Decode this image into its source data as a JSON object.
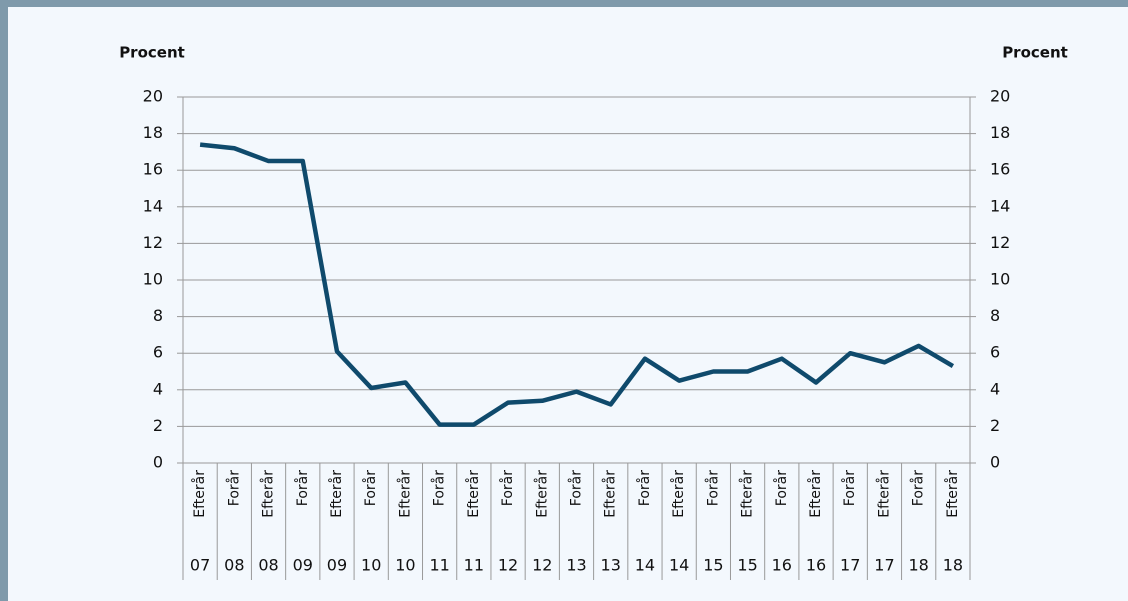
{
  "chart_data": {
    "type": "line",
    "y_label_left": "Procent",
    "y_label_right": "Procent",
    "categories": [
      [
        "Efterår",
        "07"
      ],
      [
        "Forår",
        "08"
      ],
      [
        "Efterår",
        "08"
      ],
      [
        "Forår",
        "09"
      ],
      [
        "Efterår",
        "09"
      ],
      [
        "Forår",
        "10"
      ],
      [
        "Efterår",
        "10"
      ],
      [
        "Forår",
        "11"
      ],
      [
        "Efterår",
        "11"
      ],
      [
        "Forår",
        "12"
      ],
      [
        "Efterår",
        "12"
      ],
      [
        "Forår",
        "13"
      ],
      [
        "Efterår",
        "13"
      ],
      [
        "Forår",
        "14"
      ],
      [
        "Efterår",
        "14"
      ],
      [
        "Forår",
        "15"
      ],
      [
        "Efterår",
        "15"
      ],
      [
        "Forår",
        "16"
      ],
      [
        "Efterår",
        "16"
      ],
      [
        "Forår",
        "17"
      ],
      [
        "Efterår",
        "17"
      ],
      [
        "Forår",
        "18"
      ],
      [
        "Efterår",
        "18"
      ]
    ],
    "values": [
      17.4,
      17.2,
      16.5,
      16.5,
      6.1,
      4.1,
      4.4,
      2.1,
      2.1,
      3.3,
      3.4,
      3.9,
      3.2,
      5.7,
      4.5,
      5.0,
      5.0,
      5.7,
      4.4,
      6.0,
      5.5,
      6.4,
      5.3
    ],
    "color": "#0f4a6c",
    "ylim": [
      0,
      20
    ],
    "yticks": [
      0,
      2,
      4,
      6,
      8,
      10,
      12,
      14,
      16,
      18,
      20
    ],
    "y2lim": [
      0,
      20
    ],
    "y2ticks": [
      0,
      2,
      4,
      6,
      8,
      10,
      12,
      14,
      16,
      18,
      20
    ],
    "grid": true
  }
}
